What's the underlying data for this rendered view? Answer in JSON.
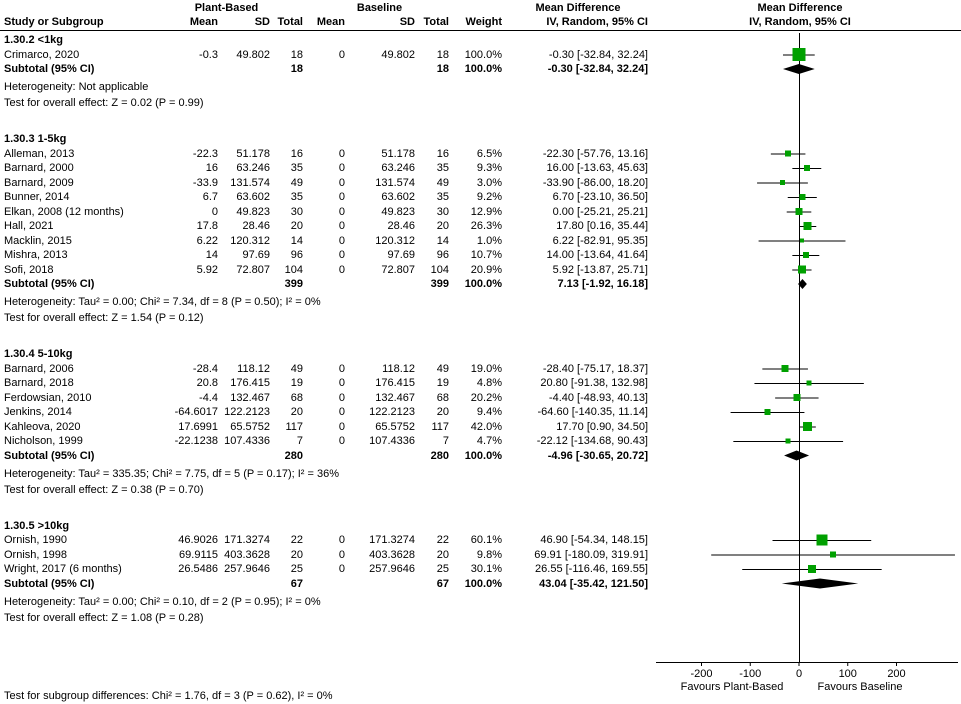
{
  "header": {
    "study_col": "Study or Subgroup",
    "group1": "Plant-Based",
    "group2": "Baseline",
    "mean": "Mean",
    "sd": "SD",
    "total": "Total",
    "weight": "Weight",
    "md_title": "Mean Difference",
    "md_sub": "IV, Random, 95% CI"
  },
  "footer": {
    "subgroup_test": "Test for subgroup differences: Chi² = 1.76, df = 3 (P = 0.62), I² = 0%"
  },
  "colors": {
    "square": "#00A000",
    "diamond": "#000000",
    "line": "#000000",
    "axis": "#000000"
  },
  "chart_data": {
    "type": "forest",
    "effect_measure": "Mean Difference",
    "model": "IV, Random, 95% CI",
    "subtotal_label": "Subtotal (95% CI)",
    "x_axis": {
      "ticks": [
        -200,
        -100,
        0,
        100,
        200
      ],
      "label_left": "Favours Plant-Based",
      "label_right": "Favours Baseline"
    },
    "groups": [
      {
        "title": "1.30.2 <1kg",
        "studies": [
          {
            "name": "Crimarco, 2020",
            "mean1": "-0.3",
            "sd1": "49.802",
            "n1": "18",
            "mean2": "0",
            "sd2": "49.802",
            "n2": "18",
            "weight": "100.0%",
            "ci_text": "-0.30 [-32.84, 32.24]",
            "est": -0.3,
            "lo": -32.84,
            "hi": 32.24,
            "w": 100.0
          }
        ],
        "subtotal": {
          "n1": "18",
          "n2": "18",
          "weight": "100.0%",
          "ci_text": "-0.30 [-32.84, 32.24]",
          "est": -0.3,
          "lo": -32.84,
          "hi": 32.24
        },
        "heterogeneity": "Heterogeneity: Not applicable",
        "overall_test": "Test for overall effect: Z = 0.02 (P = 0.99)"
      },
      {
        "title": "1.30.3 1-5kg",
        "studies": [
          {
            "name": "Alleman, 2013",
            "mean1": "-22.3",
            "sd1": "51.178",
            "n1": "16",
            "mean2": "0",
            "sd2": "51.178",
            "n2": "16",
            "weight": "6.5%",
            "ci_text": "-22.30 [-57.76, 13.16]",
            "est": -22.3,
            "lo": -57.76,
            "hi": 13.16,
            "w": 6.5
          },
          {
            "name": "Barnard, 2000",
            "mean1": "16",
            "sd1": "63.246",
            "n1": "35",
            "mean2": "0",
            "sd2": "63.246",
            "n2": "35",
            "weight": "9.3%",
            "ci_text": "16.00 [-13.63, 45.63]",
            "est": 16.0,
            "lo": -13.63,
            "hi": 45.63,
            "w": 9.3
          },
          {
            "name": "Barnard, 2009",
            "mean1": "-33.9",
            "sd1": "131.574",
            "n1": "49",
            "mean2": "0",
            "sd2": "131.574",
            "n2": "49",
            "weight": "3.0%",
            "ci_text": "-33.90 [-86.00, 18.20]",
            "est": -33.9,
            "lo": -86.0,
            "hi": 18.2,
            "w": 3.0
          },
          {
            "name": "Bunner, 2014",
            "mean1": "6.7",
            "sd1": "63.602",
            "n1": "35",
            "mean2": "0",
            "sd2": "63.602",
            "n2": "35",
            "weight": "9.2%",
            "ci_text": "6.70 [-23.10, 36.50]",
            "est": 6.7,
            "lo": -23.1,
            "hi": 36.5,
            "w": 9.2
          },
          {
            "name": "Elkan, 2008 (12 months)",
            "mean1": "0",
            "sd1": "49.823",
            "n1": "30",
            "mean2": "0",
            "sd2": "49.823",
            "n2": "30",
            "weight": "12.9%",
            "ci_text": "0.00 [-25.21, 25.21]",
            "est": 0.0,
            "lo": -25.21,
            "hi": 25.21,
            "w": 12.9
          },
          {
            "name": "Hall, 2021",
            "mean1": "17.8",
            "sd1": "28.46",
            "n1": "20",
            "mean2": "0",
            "sd2": "28.46",
            "n2": "20",
            "weight": "26.3%",
            "ci_text": "17.80 [0.16, 35.44]",
            "est": 17.8,
            "lo": 0.16,
            "hi": 35.44,
            "w": 26.3
          },
          {
            "name": "Macklin, 2015",
            "mean1": "6.22",
            "sd1": "120.312",
            "n1": "14",
            "mean2": "0",
            "sd2": "120.312",
            "n2": "14",
            "weight": "1.0%",
            "ci_text": "6.22 [-82.91, 95.35]",
            "est": 6.22,
            "lo": -82.91,
            "hi": 95.35,
            "w": 1.0
          },
          {
            "name": "Mishra, 2013",
            "mean1": "14",
            "sd1": "97.69",
            "n1": "96",
            "mean2": "0",
            "sd2": "97.69",
            "n2": "96",
            "weight": "10.7%",
            "ci_text": "14.00 [-13.64, 41.64]",
            "est": 14.0,
            "lo": -13.64,
            "hi": 41.64,
            "w": 10.7
          },
          {
            "name": "Sofi, 2018",
            "mean1": "5.92",
            "sd1": "72.807",
            "n1": "104",
            "mean2": "0",
            "sd2": "72.807",
            "n2": "104",
            "weight": "20.9%",
            "ci_text": "5.92 [-13.87, 25.71]",
            "est": 5.92,
            "lo": -13.87,
            "hi": 25.71,
            "w": 20.9
          }
        ],
        "subtotal": {
          "n1": "399",
          "n2": "399",
          "weight": "100.0%",
          "ci_text": "7.13 [-1.92, 16.18]",
          "est": 7.13,
          "lo": -1.92,
          "hi": 16.18
        },
        "heterogeneity": "Heterogeneity: Tau² = 0.00; Chi² = 7.34, df = 8 (P = 0.50); I² = 0%",
        "overall_test": "Test for overall effect: Z = 1.54 (P = 0.12)"
      },
      {
        "title": "1.30.4 5-10kg",
        "studies": [
          {
            "name": "Barnard, 2006",
            "mean1": "-28.4",
            "sd1": "118.12",
            "n1": "49",
            "mean2": "0",
            "sd2": "118.12",
            "n2": "49",
            "weight": "19.0%",
            "ci_text": "-28.40 [-75.17, 18.37]",
            "est": -28.4,
            "lo": -75.17,
            "hi": 18.37,
            "w": 19.0
          },
          {
            "name": "Barnard, 2018",
            "mean1": "20.8",
            "sd1": "176.415",
            "n1": "19",
            "mean2": "0",
            "sd2": "176.415",
            "n2": "19",
            "weight": "4.8%",
            "ci_text": "20.80 [-91.38, 132.98]",
            "est": 20.8,
            "lo": -91.38,
            "hi": 132.98,
            "w": 4.8
          },
          {
            "name": "Ferdowsian, 2010",
            "mean1": "-4.4",
            "sd1": "132.467",
            "n1": "68",
            "mean2": "0",
            "sd2": "132.467",
            "n2": "68",
            "weight": "20.2%",
            "ci_text": "-4.40 [-48.93, 40.13]",
            "est": -4.4,
            "lo": -48.93,
            "hi": 40.13,
            "w": 20.2
          },
          {
            "name": "Jenkins, 2014",
            "mean1": "-64.6017",
            "sd1": "122.2123",
            "n1": "20",
            "mean2": "0",
            "sd2": "122.2123",
            "n2": "20",
            "weight": "9.4%",
            "ci_text": "-64.60 [-140.35, 11.14]",
            "est": -64.6,
            "lo": -140.35,
            "hi": 11.14,
            "w": 9.4
          },
          {
            "name": "Kahleova, 2020",
            "mean1": "17.6991",
            "sd1": "65.5752",
            "n1": "117",
            "mean2": "0",
            "sd2": "65.5752",
            "n2": "117",
            "weight": "42.0%",
            "ci_text": "17.70 [0.90, 34.50]",
            "est": 17.7,
            "lo": 0.9,
            "hi": 34.5,
            "w": 42.0
          },
          {
            "name": "Nicholson, 1999",
            "mean1": "-22.1238",
            "sd1": "107.4336",
            "n1": "7",
            "mean2": "0",
            "sd2": "107.4336",
            "n2": "7",
            "weight": "4.7%",
            "ci_text": "-22.12 [-134.68, 90.43]",
            "est": -22.12,
            "lo": -134.68,
            "hi": 90.43,
            "w": 4.7
          }
        ],
        "subtotal": {
          "n1": "280",
          "n2": "280",
          "weight": "100.0%",
          "ci_text": "-4.96 [-30.65, 20.72]",
          "est": -4.96,
          "lo": -30.65,
          "hi": 20.72
        },
        "heterogeneity": "Heterogeneity: Tau² = 335.35; Chi² = 7.75, df = 5 (P = 0.17); I² = 36%",
        "overall_test": "Test for overall effect: Z = 0.38 (P = 0.70)"
      },
      {
        "title": "1.30.5 >10kg",
        "studies": [
          {
            "name": "Ornish, 1990",
            "mean1": "46.9026",
            "sd1": "171.3274",
            "n1": "22",
            "mean2": "0",
            "sd2": "171.3274",
            "n2": "22",
            "weight": "60.1%",
            "ci_text": "46.90 [-54.34, 148.15]",
            "est": 46.9,
            "lo": -54.34,
            "hi": 148.15,
            "w": 60.1
          },
          {
            "name": "Ornish, 1998",
            "mean1": "69.9115",
            "sd1": "403.3628",
            "n1": "20",
            "mean2": "0",
            "sd2": "403.3628",
            "n2": "20",
            "weight": "9.8%",
            "ci_text": "69.91 [-180.09, 319.91]",
            "est": 69.91,
            "lo": -180.09,
            "hi": 319.91,
            "w": 9.8
          },
          {
            "name": "Wright, 2017 (6 months)",
            "mean1": "26.5486",
            "sd1": "257.9646",
            "n1": "25",
            "mean2": "0",
            "sd2": "257.9646",
            "n2": "25",
            "weight": "30.1%",
            "ci_text": "26.55 [-116.46, 169.55]",
            "est": 26.55,
            "lo": -116.46,
            "hi": 169.55,
            "w": 30.1
          }
        ],
        "subtotal": {
          "n1": "67",
          "n2": "67",
          "weight": "100.0%",
          "ci_text": "43.04 [-35.42, 121.50]",
          "est": 43.04,
          "lo": -35.42,
          "hi": 121.5
        },
        "heterogeneity": "Heterogeneity: Tau² = 0.00; Chi² = 0.10, df = 2 (P = 0.95); I² = 0%",
        "overall_test": "Test for overall effect: Z = 1.08 (P = 0.28)"
      }
    ]
  }
}
